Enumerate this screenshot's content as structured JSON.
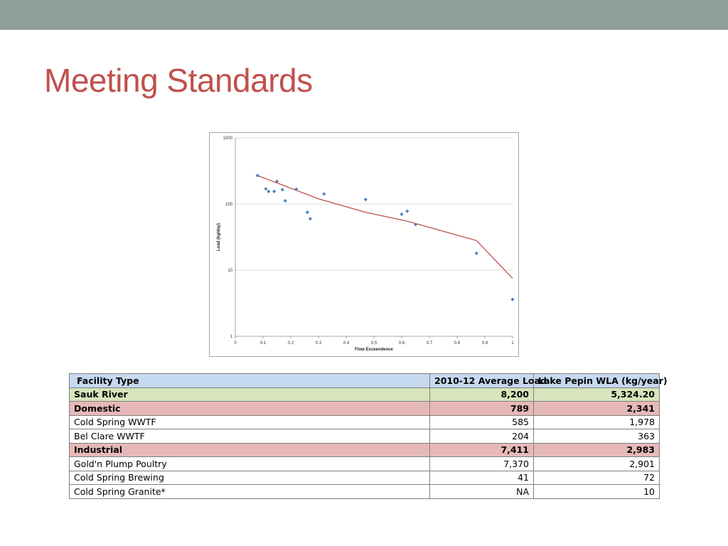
{
  "slide": {
    "title": "Meeting Standards",
    "title_color": "#c0504d",
    "top_bar_color": "#8f9e97"
  },
  "chart_data": {
    "type": "scatter",
    "xlabel": "Flow Exceendence",
    "ylabel": "Load (kg/day)",
    "xlim": [
      0,
      1
    ],
    "ylim": [
      1,
      1000
    ],
    "y_scale": "log",
    "grid": "horizontal",
    "x_tick_labels": [
      "0",
      "0.1",
      "0.2",
      "0.3",
      "0.4",
      "0.5",
      "0.6",
      "0.7",
      "0.8",
      "0.9",
      "1"
    ],
    "y_tick_labels": [
      "1",
      "10",
      "100",
      "1000"
    ],
    "points_color": "#4f81bd",
    "line_color": "#c0504d",
    "series": [
      {
        "kind": "points",
        "x": [
          0.08,
          0.11,
          0.12,
          0.14,
          0.15,
          0.17,
          0.18,
          0.22,
          0.26,
          0.27,
          0.32,
          0.47,
          0.6,
          0.62,
          0.65,
          0.87,
          1.0
        ],
        "y": [
          270,
          170,
          155,
          155,
          220,
          165,
          112,
          168,
          75,
          60,
          142,
          117,
          70,
          78,
          49,
          18,
          3.6
        ]
      },
      {
        "kind": "line",
        "x": [
          0.08,
          0.3,
          0.47,
          0.62,
          0.87,
          1.0
        ],
        "y": [
          270,
          120,
          75,
          55,
          28,
          7.5
        ]
      }
    ]
  },
  "table": {
    "columns": [
      "Facility Type",
      "2010-12 Average Load",
      "Lake Pepin WLA (kg/year)"
    ],
    "rows": [
      {
        "label": "Sauk River",
        "load": "8,200",
        "wla": "5,324.20",
        "style": "total"
      },
      {
        "label": "Domestic",
        "load": "789",
        "wla": "2,341",
        "style": "group"
      },
      {
        "label": "Cold Spring WWTF",
        "load": "585",
        "wla": "1,978",
        "style": "item"
      },
      {
        "label": "Bel Clare WWTF",
        "load": "204",
        "wla": "363",
        "style": "item"
      },
      {
        "label": "Industrial",
        "load": "7,411",
        "wla": "2,983",
        "style": "group"
      },
      {
        "label": "Gold'n Plump Poultry",
        "load": "7,370",
        "wla": "2,901",
        "style": "item"
      },
      {
        "label": "Cold Spring Brewing",
        "load": "41",
        "wla": "72",
        "style": "item"
      },
      {
        "label": "Cold Spring Granite*",
        "load": "NA",
        "wla": "10",
        "style": "item"
      }
    ],
    "colors": {
      "header": "#c5d9f1",
      "total": "#d7e4bc",
      "group": "#e6b9b8",
      "item": "#ffffff"
    }
  }
}
